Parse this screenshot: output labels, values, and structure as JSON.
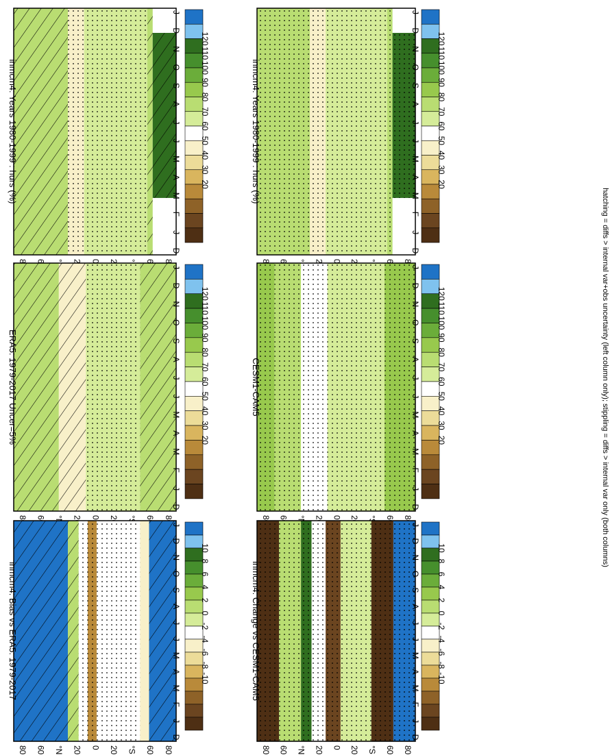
{
  "chart_data": {
    "type": "heatmap",
    "orientation": "rotated 90 degrees clockwise (months run left-to-right along the bottom edge, latitude runs along the left edge)",
    "footnote": "hatching = diffs > internal var+obs uncertainty (left column only); stippling = diffs > internal var only (both columns)",
    "x_ticks": [
      "D",
      "J",
      "F",
      "M",
      "A",
      "M",
      "J",
      "J",
      "A",
      "S",
      "O",
      "N",
      "D",
      "J"
    ],
    "y_ticks": [
      "80",
      "60",
      "°N",
      "20",
      "0",
      "20",
      "°S",
      "60",
      "80"
    ],
    "panels": [
      {
        "id": "p1",
        "title": "inmcm4: Years 1980-1999 : hurs (%)",
        "colorbar": {
          "labels": [
            "120",
            "110",
            "100",
            "90",
            "80",
            "70",
            "60",
            "50",
            "40",
            "30",
            "20"
          ],
          "colors": [
            "#1f73c6",
            "#7fc2ee",
            "#2f6e1f",
            "#468f2d",
            "#6bad3a",
            "#98c94d",
            "#b9dd72",
            "#d5ec99",
            "#ffffff",
            "#f8f0c9",
            "#ecdc99",
            "#d9b55e",
            "#b98a3a",
            "#8e6228",
            "#6b4520",
            "#4e2f14"
          ]
        },
        "bands": [
          {
            "lat_from": 90,
            "lat_to": 30,
            "value": 90,
            "pattern": "hatch"
          },
          {
            "lat_from": 30,
            "lat_to": 12,
            "value": 72,
            "pattern": "stipple"
          },
          {
            "lat_from": 12,
            "lat_to": -58,
            "value": 85,
            "pattern": "stipple"
          },
          {
            "lat_from": -58,
            "lat_to": -64,
            "value": 88,
            "pattern": "hatch"
          },
          {
            "lat_from": -64,
            "lat_to": -90,
            "value": 120,
            "pattern": "hatch",
            "months_from": 1.3,
            "months_to": 10
          }
        ]
      },
      {
        "id": "p2",
        "title": "inmcm4: Years 1980-1999 : hurs (%)",
        "colorbar": {
          "labels": [
            "120",
            "110",
            "100",
            "90",
            "80",
            "70",
            "60",
            "50",
            "40",
            "30",
            "20"
          ],
          "colors": [
            "#1f73c6",
            "#7fc2ee",
            "#2f6e1f",
            "#468f2d",
            "#6bad3a",
            "#98c94d",
            "#b9dd72",
            "#d5ec99",
            "#ffffff",
            "#f8f0c9",
            "#ecdc99",
            "#d9b55e",
            "#b98a3a",
            "#8e6228",
            "#6b4520",
            "#4e2f14"
          ]
        },
        "bands": [
          {
            "lat_from": 90,
            "lat_to": 30,
            "value": 90,
            "pattern": "stipple"
          },
          {
            "lat_from": 30,
            "lat_to": 12,
            "value": 72,
            "pattern": "stipple"
          },
          {
            "lat_from": 12,
            "lat_to": -58,
            "value": 85,
            "pattern": "stipple"
          },
          {
            "lat_from": -58,
            "lat_to": -64,
            "value": 88,
            "pattern": "stipple"
          },
          {
            "lat_from": -64,
            "lat_to": -90,
            "value": 120,
            "pattern": "stipple",
            "months_from": 1.3,
            "months_to": 10
          }
        ]
      },
      {
        "id": "p3",
        "title": "ERA5: 1979-2017 Uncer=5%",
        "colorbar": {
          "labels": [
            "120",
            "110",
            "100",
            "90",
            "80",
            "70",
            "60",
            "50",
            "40",
            "30",
            "20"
          ],
          "colors": [
            "#1f73c6",
            "#7fc2ee",
            "#2f6e1f",
            "#468f2d",
            "#6bad3a",
            "#98c94d",
            "#b9dd72",
            "#d5ec99",
            "#ffffff",
            "#f8f0c9",
            "#ecdc99",
            "#d9b55e",
            "#b98a3a",
            "#8e6228",
            "#6b4520",
            "#4e2f14"
          ]
        },
        "bands": [
          {
            "lat_from": 90,
            "lat_to": 40,
            "value": 88,
            "pattern": "hatch"
          },
          {
            "lat_from": 40,
            "lat_to": 10,
            "value": 68,
            "pattern": "hatch"
          },
          {
            "lat_from": 10,
            "lat_to": -50,
            "value": 85,
            "pattern": "stipple"
          },
          {
            "lat_from": -50,
            "lat_to": -90,
            "value": 88,
            "pattern": "hatch"
          }
        ]
      },
      {
        "id": "p4",
        "title": "CESM1-CAM5",
        "colorbar": {
          "labels": [
            "120",
            "110",
            "100",
            "90",
            "80",
            "70",
            "60",
            "50",
            "40",
            "30",
            "20"
          ],
          "colors": [
            "#1f73c6",
            "#7fc2ee",
            "#2f6e1f",
            "#468f2d",
            "#6bad3a",
            "#98c94d",
            "#b9dd72",
            "#d5ec99",
            "#ffffff",
            "#f8f0c9",
            "#ecdc99",
            "#d9b55e",
            "#b98a3a",
            "#8e6228",
            "#6b4520",
            "#4e2f14"
          ]
        },
        "bands": [
          {
            "lat_from": 90,
            "lat_to": 70,
            "value": 98,
            "pattern": "stipple"
          },
          {
            "lat_from": 70,
            "lat_to": 40,
            "value": 90,
            "pattern": "stipple"
          },
          {
            "lat_from": 40,
            "lat_to": 10,
            "value": 74,
            "pattern": "stipple"
          },
          {
            "lat_from": 10,
            "lat_to": -55,
            "value": 85,
            "pattern": "stipple"
          },
          {
            "lat_from": -55,
            "lat_to": -90,
            "value": 95,
            "pattern": "stipple"
          }
        ]
      },
      {
        "id": "p5",
        "title": "inmcm4: Bias vs ERA5: 1979-2017",
        "colorbar": {
          "labels": [
            "10",
            "8",
            "6",
            "4",
            "2",
            "0",
            "-2",
            "-4",
            "-6",
            "-8",
            "-10"
          ],
          "colors": [
            "#1f73c6",
            "#7fc2ee",
            "#2f6e1f",
            "#468f2d",
            "#6bad3a",
            "#98c94d",
            "#b9dd72",
            "#d5ec99",
            "#ffffff",
            "#f8f0c9",
            "#ecdc99",
            "#d9b55e",
            "#b98a3a",
            "#8e6228",
            "#6b4520",
            "#4e2f14"
          ]
        },
        "bands": [
          {
            "lat_from": 90,
            "lat_to": 30,
            "value": 12,
            "pattern": "hatch"
          },
          {
            "lat_from": 30,
            "lat_to": 18,
            "value": 4,
            "pattern": "hatch"
          },
          {
            "lat_from": 18,
            "lat_to": 8,
            "value": 1,
            "pattern": "stipple"
          },
          {
            "lat_from": 8,
            "lat_to": -2,
            "value": -4,
            "pattern": "stipple"
          },
          {
            "lat_from": -2,
            "lat_to": -50,
            "value": 1,
            "pattern": "stipple"
          },
          {
            "lat_from": -50,
            "lat_to": -60,
            "value": 0,
            "pattern": "none"
          },
          {
            "lat_from": -60,
            "lat_to": -90,
            "value": 12,
            "pattern": "hatch"
          }
        ]
      },
      {
        "id": "p6",
        "title": "inmcm4: Change vs CESM1-CAM5",
        "colorbar": {
          "labels": [
            "10",
            "8",
            "6",
            "4",
            "2",
            "0",
            "-2",
            "-4",
            "-6",
            "-8",
            "-10"
          ],
          "colors": [
            "#1f73c6",
            "#7fc2ee",
            "#2f6e1f",
            "#468f2d",
            "#6bad3a",
            "#98c94d",
            "#b9dd72",
            "#d5ec99",
            "#ffffff",
            "#f8f0c9",
            "#ecdc99",
            "#d9b55e",
            "#b98a3a",
            "#8e6228",
            "#6b4520",
            "#4e2f14"
          ]
        },
        "bands": [
          {
            "lat_from": 90,
            "lat_to": 65,
            "value": -8,
            "pattern": "stipple"
          },
          {
            "lat_from": 65,
            "lat_to": 40,
            "value": 4,
            "pattern": "stipple"
          },
          {
            "lat_from": 40,
            "lat_to": 28,
            "value": 9,
            "pattern": "stipple"
          },
          {
            "lat_from": 28,
            "lat_to": 12,
            "value": 1,
            "pattern": "stipple"
          },
          {
            "lat_from": 12,
            "lat_to": -5,
            "value": -6,
            "pattern": "stipple"
          },
          {
            "lat_from": -5,
            "lat_to": -40,
            "value": 3,
            "pattern": "stipple"
          },
          {
            "lat_from": -40,
            "lat_to": -65,
            "value": -8,
            "pattern": "stipple"
          },
          {
            "lat_from": -65,
            "lat_to": -90,
            "value": 12,
            "pattern": "stipple"
          }
        ]
      }
    ]
  }
}
